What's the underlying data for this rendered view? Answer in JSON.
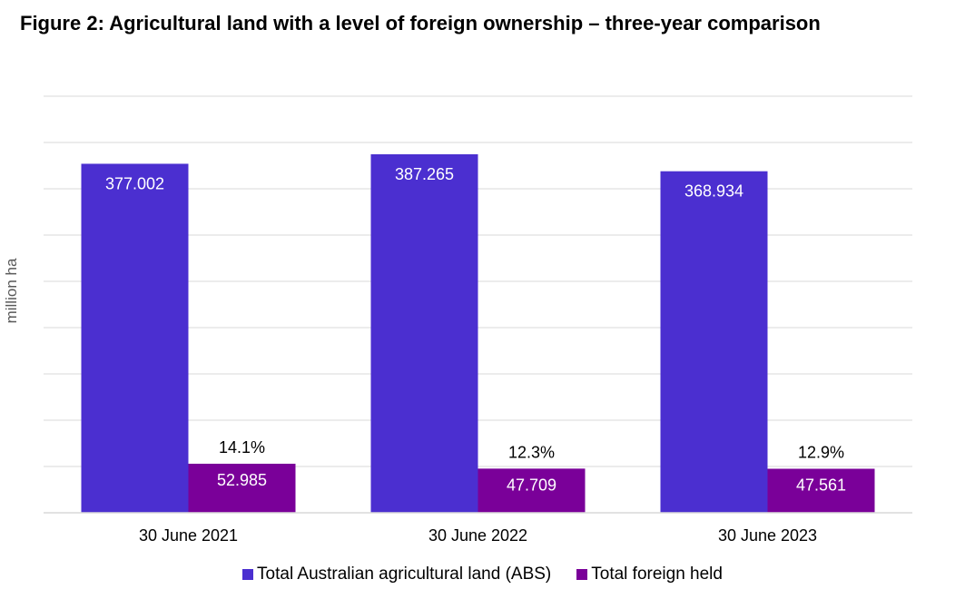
{
  "chart_data": {
    "type": "bar",
    "title": "Figure 2: Agricultural land with a level of foreign ownership – three-year comparison",
    "ylabel": "million ha",
    "xlabel": "",
    "categories": [
      "30 June 2021",
      "30 June 2022",
      "30 June 2023"
    ],
    "series": [
      {
        "name": "Total Australian agricultural land (ABS)",
        "color": "#4b2fd0",
        "values": [
          377.002,
          387.265,
          368.934
        ],
        "labels": [
          "377.002",
          "387.265",
          "368.934"
        ]
      },
      {
        "name": "Total foreign held",
        "color": "#7a0099",
        "values": [
          52.985,
          47.709,
          47.561
        ],
        "labels": [
          "52.985",
          "47.709",
          "47.561"
        ]
      }
    ],
    "annotations": [
      "14.1%",
      "12.3%",
      "12.9%"
    ],
    "ylim": [
      0,
      450
    ],
    "grid": true,
    "legend_position": "bottom"
  }
}
